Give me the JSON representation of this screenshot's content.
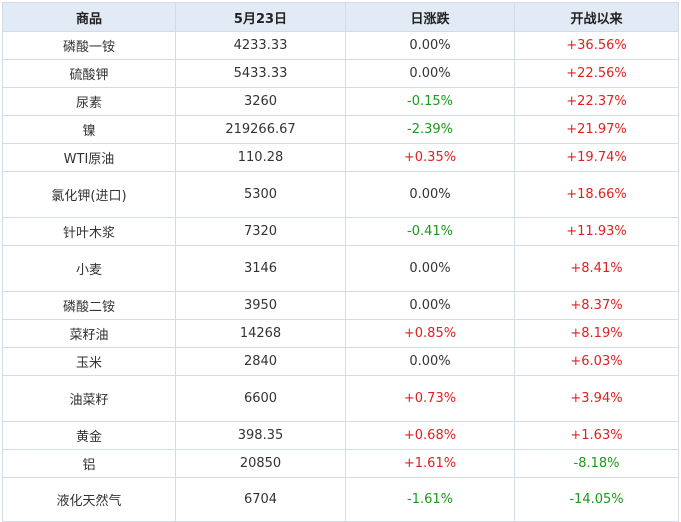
{
  "table": {
    "headers": [
      "商品",
      "5月23日",
      "日涨跌",
      "开战以来"
    ],
    "rows": [
      {
        "name": "磷酸一铵",
        "price": "4233.33",
        "daily": "0.00%",
        "since": "+36.56%"
      },
      {
        "name": "硫酸钾",
        "price": "5433.33",
        "daily": "0.00%",
        "since": "+22.56%"
      },
      {
        "name": "尿素",
        "price": "3260",
        "daily": "-0.15%",
        "since": "+22.37%"
      },
      {
        "name": "镍",
        "price": "219266.67",
        "daily": "-2.39%",
        "since": "+21.97%"
      },
      {
        "name": "WTI原油",
        "price": "110.28",
        "daily": "+0.35%",
        "since": "+19.74%"
      },
      {
        "name": "氯化钾(进口)",
        "price": "5300",
        "daily": "0.00%",
        "since": "+18.66%"
      },
      {
        "name": "针叶木浆",
        "price": "7320",
        "daily": "-0.41%",
        "since": "+11.93%"
      },
      {
        "name": "小麦",
        "price": "3146",
        "daily": "0.00%",
        "since": "+8.41%"
      },
      {
        "name": "磷酸二铵",
        "price": "3950",
        "daily": "0.00%",
        "since": "+8.37%"
      },
      {
        "name": "菜籽油",
        "price": "14268",
        "daily": "+0.85%",
        "since": "+8.19%"
      },
      {
        "name": "玉米",
        "price": "2840",
        "daily": "0.00%",
        "since": "+6.03%"
      },
      {
        "name": "油菜籽",
        "price": "6600",
        "daily": "+0.73%",
        "since": "+3.94%"
      },
      {
        "name": "黄金",
        "price": "398.35",
        "daily": "+0.68%",
        "since": "+1.63%"
      },
      {
        "name": "铝",
        "price": "20850",
        "daily": "+1.61%",
        "since": "-8.18%"
      },
      {
        "name": "液化天然气",
        "price": "6704",
        "daily": "-1.61%",
        "since": "-14.05%"
      }
    ]
  },
  "colors": {
    "up": "#e02020",
    "down": "#1a9a1a",
    "header_bg": "#e2eaf6",
    "border": "#d5dbe5"
  }
}
